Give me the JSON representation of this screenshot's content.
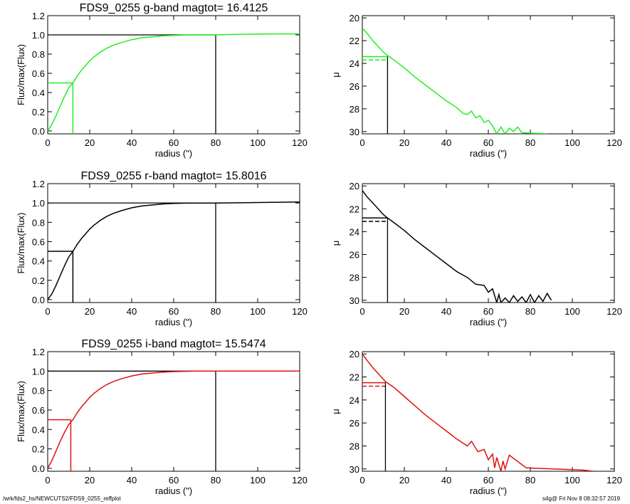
{
  "footer": {
    "left": "/wrk/fds2_hs/NEWCUTS2/FDS9_0255_reffplot",
    "right": "s4g@  Fri Nov  8 08:32:57 2019"
  },
  "colors": {
    "g": "#22ee22",
    "r": "#000000",
    "i": "#dd1111",
    "axes": "#000000"
  },
  "chart_data": [
    {
      "type": "line",
      "title": "FDS9_0255 g-band  magtot=     16.4125",
      "xlabel": "radius (\")",
      "ylabel": "Flux/max(Flux)",
      "xlim": [
        0,
        120
      ],
      "ylim": [
        -0.03,
        1.2
      ],
      "xticks": [
        "0",
        "20",
        "40",
        "60",
        "80",
        "100",
        "120"
      ],
      "yticks": [
        "0.0",
        "0.2",
        "0.4",
        "0.6",
        "0.8",
        "1.0",
        "1.2"
      ],
      "color": "#22ee22",
      "series": [
        {
          "x": [
            0,
            2,
            4,
            6,
            8,
            10,
            12,
            14,
            16,
            18,
            20,
            22,
            25,
            28,
            31,
            35,
            40,
            45,
            50,
            55,
            60,
            65,
            70,
            75,
            80,
            90,
            100,
            110,
            120
          ],
          "values": [
            0,
            0.07,
            0.16,
            0.26,
            0.36,
            0.45,
            0.5,
            0.57,
            0.63,
            0.68,
            0.73,
            0.77,
            0.82,
            0.86,
            0.89,
            0.92,
            0.95,
            0.97,
            0.98,
            0.99,
            0.995,
            0.998,
            1.0,
            1.0,
            1.0,
            1.005,
            1.008,
            1.01,
            1.01
          ]
        }
      ],
      "half_light_radius": 12,
      "half_level": 0.5,
      "total_radius": 80,
      "total_level": 1.0
    },
    {
      "type": "line",
      "title": "",
      "xlabel": "radius (\")",
      "ylabel": "μ",
      "xlim": [
        0,
        120
      ],
      "ylim": [
        30.2,
        19.8
      ],
      "xticks": [
        "0",
        "20",
        "40",
        "60",
        "80",
        "100",
        "120"
      ],
      "yticks": [
        "20",
        "22",
        "24",
        "26",
        "28",
        "30"
      ],
      "color": "#22ee22",
      "series": [
        {
          "x": [
            0,
            2,
            5,
            8,
            10,
            12,
            15,
            20,
            25,
            30,
            35,
            40,
            45,
            48,
            50,
            52,
            54,
            56,
            58,
            60,
            62,
            64,
            66,
            68,
            70,
            72,
            74,
            76,
            88
          ],
          "values": [
            20.9,
            21.3,
            22.0,
            22.6,
            23.0,
            23.3,
            23.7,
            24.4,
            25.2,
            25.9,
            26.6,
            27.3,
            27.9,
            28.4,
            28.5,
            28.2,
            28.8,
            28.6,
            29.2,
            29.0,
            29.5,
            30.2,
            29.6,
            30.2,
            29.7,
            30.0,
            29.6,
            30.1,
            30.2
          ]
        }
      ],
      "mu_eff": 23.4,
      "mu_mean_eff": 23.7,
      "half_light_radius": 12
    },
    {
      "type": "line",
      "title": "FDS9_0255 r-band  magtot=     15.8016",
      "xlabel": "radius (\")",
      "ylabel": "Flux/max(Flux)",
      "xlim": [
        0,
        120
      ],
      "ylim": [
        -0.03,
        1.2
      ],
      "xticks": [
        "0",
        "20",
        "40",
        "60",
        "80",
        "100",
        "120"
      ],
      "yticks": [
        "0.0",
        "0.2",
        "0.4",
        "0.6",
        "0.8",
        "1.0",
        "1.2"
      ],
      "color": "#000000",
      "series": [
        {
          "x": [
            0,
            2,
            4,
            6,
            8,
            10,
            12,
            14,
            16,
            18,
            20,
            22,
            25,
            28,
            31,
            35,
            40,
            45,
            50,
            55,
            60,
            65,
            70,
            75,
            80,
            90,
            100,
            110,
            120
          ],
          "values": [
            0,
            0.06,
            0.15,
            0.25,
            0.35,
            0.44,
            0.5,
            0.57,
            0.63,
            0.68,
            0.73,
            0.77,
            0.82,
            0.86,
            0.89,
            0.92,
            0.95,
            0.97,
            0.98,
            0.99,
            0.995,
            0.998,
            1.0,
            1.0,
            1.0,
            1.002,
            1.005,
            1.008,
            1.01
          ]
        }
      ],
      "half_light_radius": 12,
      "half_level": 0.5,
      "total_radius": 80,
      "total_level": 1.0
    },
    {
      "type": "line",
      "title": "",
      "xlabel": "radius (\")",
      "ylabel": "μ",
      "xlim": [
        0,
        120
      ],
      "ylim": [
        30.2,
        19.8
      ],
      "xticks": [
        "0",
        "20",
        "40",
        "60",
        "80",
        "100",
        "120"
      ],
      "yticks": [
        "20",
        "22",
        "24",
        "26",
        "28",
        "30"
      ],
      "color": "#000000",
      "series": [
        {
          "x": [
            0,
            2,
            5,
            8,
            10,
            12,
            15,
            20,
            25,
            30,
            35,
            40,
            45,
            50,
            54,
            58,
            60,
            62,
            64,
            65,
            66,
            68,
            70,
            72,
            74,
            76,
            78,
            80,
            82,
            84,
            86,
            88,
            90
          ],
          "values": [
            20.4,
            20.9,
            21.5,
            22.1,
            22.5,
            22.8,
            23.2,
            23.9,
            24.7,
            25.4,
            26.1,
            26.8,
            27.5,
            28.0,
            28.6,
            28.7,
            29.3,
            29.0,
            30.2,
            29.5,
            30.2,
            29.8,
            30.2,
            29.6,
            30.1,
            29.7,
            30.2,
            29.5,
            30.2,
            29.6,
            30.1,
            29.4,
            30.0
          ]
        }
      ],
      "mu_eff": 22.8,
      "mu_mean_eff": 23.1,
      "half_light_radius": 12
    },
    {
      "type": "line",
      "title": "FDS9_0255 i-band  magtot=     15.5474",
      "xlabel": "radius (\")",
      "ylabel": "Flux/max(Flux)",
      "xlim": [
        0,
        120
      ],
      "ylim": [
        -0.03,
        1.2
      ],
      "xticks": [
        "0",
        "20",
        "40",
        "60",
        "80",
        "100",
        "120"
      ],
      "yticks": [
        "0.0",
        "0.2",
        "0.4",
        "0.6",
        "0.8",
        "1.0",
        "1.2"
      ],
      "color": "#dd1111",
      "series": [
        {
          "x": [
            0,
            2,
            4,
            6,
            8,
            10,
            12,
            14,
            16,
            18,
            20,
            22,
            25,
            28,
            31,
            35,
            40,
            45,
            50,
            55,
            60,
            65,
            70,
            75,
            80,
            90,
            100,
            110,
            120
          ],
          "values": [
            0,
            0.08,
            0.18,
            0.28,
            0.37,
            0.45,
            0.5,
            0.57,
            0.63,
            0.68,
            0.73,
            0.77,
            0.82,
            0.86,
            0.89,
            0.92,
            0.95,
            0.97,
            0.98,
            0.99,
            0.995,
            0.998,
            1.0,
            1.0,
            1.0,
            1.0,
            1.0,
            1.0,
            1.0
          ]
        }
      ],
      "half_light_radius": 11,
      "half_level": 0.5,
      "total_radius": 80,
      "total_level": 1.0
    },
    {
      "type": "line",
      "title": "",
      "xlabel": "radius (\")",
      "ylabel": "μ",
      "xlim": [
        0,
        120
      ],
      "ylim": [
        30.2,
        19.8
      ],
      "xticks": [
        "0",
        "20",
        "40",
        "60",
        "80",
        "100",
        "120"
      ],
      "yticks": [
        "20",
        "22",
        "24",
        "26",
        "28",
        "30"
      ],
      "color": "#dd1111",
      "series": [
        {
          "x": [
            0,
            2,
            5,
            8,
            10,
            11,
            15,
            20,
            25,
            30,
            35,
            40,
            45,
            50,
            52,
            55,
            58,
            60,
            62,
            63,
            64,
            66,
            67,
            68,
            70,
            78,
            105,
            110
          ],
          "values": [
            20.0,
            20.5,
            21.2,
            21.8,
            22.2,
            22.4,
            22.9,
            23.7,
            24.5,
            25.3,
            26.0,
            26.7,
            27.4,
            28.0,
            27.6,
            28.5,
            28.3,
            29.2,
            28.7,
            29.9,
            29.0,
            30.2,
            29.3,
            30.0,
            28.8,
            29.9,
            30.1,
            30.2
          ]
        }
      ],
      "mu_eff": 22.5,
      "mu_mean_eff": 22.8,
      "half_light_radius": 11
    }
  ]
}
